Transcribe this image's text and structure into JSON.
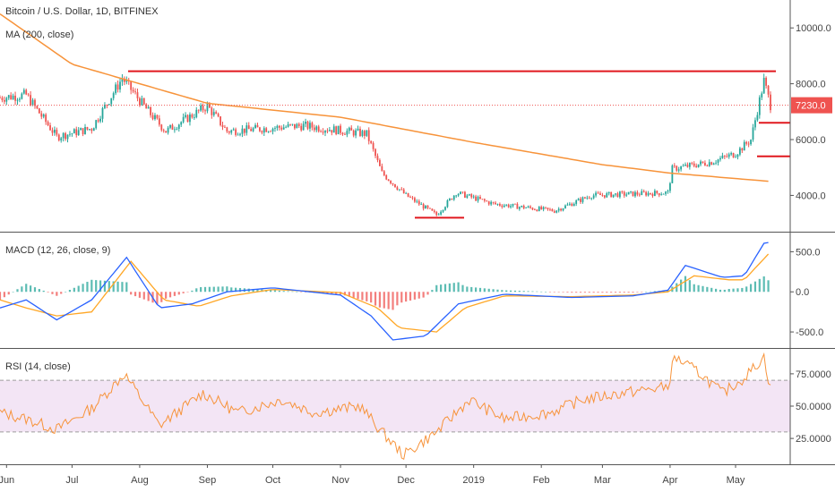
{
  "chart_data": [
    {
      "type": "candlestick",
      "title": "Bitcoin / U.S. Dollar, 1D, BITFINEX",
      "indicator_label": "MA (200, close)",
      "y_ticks": [
        "10000.0",
        "8000.0",
        "6000.0",
        "4000.0"
      ],
      "last_price_label": "7230.0",
      "ylim": [
        2700,
        11000
      ],
      "x_ticks": [
        "Jun",
        "Jul",
        "Aug",
        "Sep",
        "Oct",
        "Nov",
        "Dec",
        "2019",
        "Feb",
        "Mar",
        "Apr",
        "May"
      ],
      "price_keypoints": {
        "x": [
          "2018-05-29",
          "2018-06-10",
          "2018-06-24",
          "2018-07-10",
          "2018-07-24",
          "2018-08-05",
          "2018-08-13",
          "2018-09-01",
          "2018-09-10",
          "2018-10-15",
          "2018-11-13",
          "2018-11-20",
          "2018-12-01",
          "2018-12-15",
          "2018-12-24",
          "2019-01-10",
          "2019-02-07",
          "2019-02-24",
          "2019-03-31",
          "2019-04-02",
          "2019-04-20",
          "2019-05-01",
          "2019-05-08",
          "2019-05-14",
          "2019-05-17"
        ],
        "close": [
          7500,
          7600,
          6100,
          6400,
          8200,
          7000,
          6300,
          7200,
          6300,
          6500,
          6200,
          4800,
          4000,
          3300,
          4100,
          3700,
          3450,
          4000,
          4100,
          4950,
          5200,
          5500,
          6000,
          8100,
          7230
        ]
      },
      "ma200_keypoints": {
        "x": [
          "2018-05-29",
          "2018-07-01",
          "2018-09-01",
          "2018-11-01",
          "2019-01-01",
          "2019-03-01",
          "2019-04-01",
          "2019-05-17"
        ],
        "value": [
          10500,
          8700,
          7300,
          6800,
          5900,
          5100,
          4800,
          4500
        ]
      },
      "annotations": {
        "resistance_level": 8450,
        "support_level": 3200,
        "mark_levels": [
          6600,
          5400
        ]
      },
      "colors": {
        "up": "#26a69a",
        "down": "#ef5350",
        "ma": "#f7933a",
        "resistance": "#e0181e",
        "last_price": "#ef5350"
      }
    },
    {
      "type": "line",
      "title": "MACD (12, 26, close, 9)",
      "y_ticks": [
        "500.0",
        "0.0",
        "-500.0"
      ],
      "ylim": [
        -700,
        750
      ],
      "macd_keypoints": {
        "x": [
          "2018-05-29",
          "2018-06-10",
          "2018-06-24",
          "2018-07-10",
          "2018-07-26",
          "2018-08-10",
          "2018-08-25",
          "2018-09-10",
          "2018-10-01",
          "2018-11-01",
          "2018-11-15",
          "2018-11-25",
          "2018-12-10",
          "2018-12-25",
          "2019-01-15",
          "2019-02-15",
          "2019-03-15",
          "2019-03-31",
          "2019-04-08",
          "2019-04-25",
          "2019-05-05",
          "2019-05-15",
          "2019-05-17"
        ],
        "value": [
          -200,
          -100,
          -350,
          -100,
          430,
          -200,
          -150,
          0,
          50,
          -40,
          -300,
          -600,
          -550,
          -150,
          -30,
          -70,
          -50,
          20,
          330,
          180,
          200,
          650,
          580
        ]
      },
      "signal_keypoints": {
        "x": [
          "2018-05-29",
          "2018-06-10",
          "2018-06-24",
          "2018-07-10",
          "2018-07-28",
          "2018-08-12",
          "2018-08-28",
          "2018-09-12",
          "2018-10-01",
          "2018-11-01",
          "2018-11-18",
          "2018-11-28",
          "2018-12-15",
          "2018-12-28",
          "2019-01-15",
          "2019-02-15",
          "2019-03-15",
          "2019-03-31",
          "2019-04-12",
          "2019-04-28",
          "2019-05-05",
          "2019-05-17"
        ],
        "value": [
          -100,
          -200,
          -300,
          -250,
          380,
          -100,
          -180,
          -50,
          30,
          -10,
          -200,
          -450,
          -500,
          -200,
          -50,
          -60,
          -40,
          0,
          200,
          150,
          150,
          500
        ]
      },
      "colors": {
        "macd": "#2962ff",
        "signal": "#ffa726",
        "hist_up": "#26a69a",
        "hist_down": "#ef5350"
      }
    },
    {
      "type": "line",
      "title": "RSI (14, close)",
      "y_ticks": [
        "75.0000",
        "50.0000",
        "25.0000"
      ],
      "ylim": [
        5,
        95
      ],
      "band": [
        30,
        70
      ],
      "rsi_keypoints": {
        "x": [
          "2018-05-29",
          "2018-06-10",
          "2018-06-24",
          "2018-07-10",
          "2018-07-25",
          "2018-08-10",
          "2018-08-30",
          "2018-09-15",
          "2018-10-05",
          "2018-10-20",
          "2018-11-10",
          "2018-11-20",
          "2018-11-30",
          "2018-12-15",
          "2018-12-30",
          "2019-01-15",
          "2019-02-05",
          "2019-02-20",
          "2019-03-10",
          "2019-03-31",
          "2019-04-03",
          "2019-04-15",
          "2019-04-25",
          "2019-05-05",
          "2019-05-14",
          "2019-05-17"
        ],
        "value": [
          45,
          40,
          32,
          48,
          75,
          35,
          60,
          45,
          55,
          45,
          50,
          30,
          12,
          30,
          55,
          40,
          45,
          55,
          60,
          65,
          88,
          75,
          60,
          72,
          88,
          63
        ]
      },
      "colors": {
        "rsi": "#f7933a",
        "band": "#f3e5f5",
        "band_line": "#9e9e9e"
      }
    }
  ]
}
